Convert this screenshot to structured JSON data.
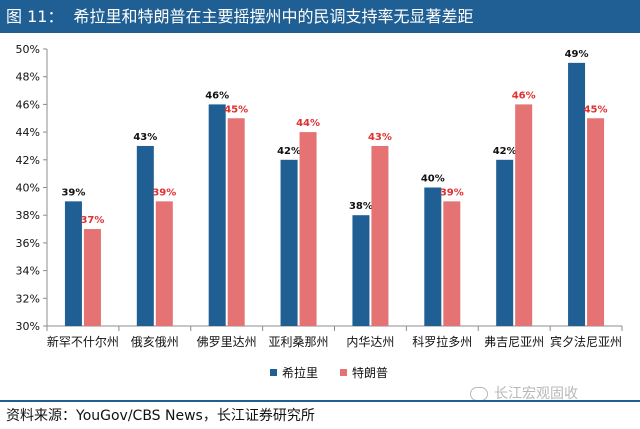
{
  "header": {
    "figure_no": "图 11：",
    "title": "希拉里和特朗普在主要摇摆州中的民调支持率无显著差距"
  },
  "source": "资料来源：YouGov/CBS News，长江证券研究所",
  "watermark": "长江宏观固收",
  "chart_data": {
    "type": "bar",
    "categories": [
      "新罕不什尔州",
      "俄亥俄州",
      "佛罗里达州",
      "亚利桑那州",
      "内华达州",
      "科罗拉多州",
      "弗吉尼亚州",
      "宾夕法尼亚州"
    ],
    "series": [
      {
        "name": "希拉里",
        "color": "#1f5f93",
        "label_color": "#111111",
        "values": [
          39,
          43,
          46,
          42,
          38,
          40,
          42,
          49
        ]
      },
      {
        "name": "特朗普",
        "color": "#e57373",
        "label_color": "#e03030",
        "values": [
          37,
          39,
          45,
          44,
          43,
          39,
          46,
          45
        ]
      }
    ],
    "ylim": [
      30,
      50
    ],
    "ytick_step": 2,
    "ytick_format": "percent",
    "legend_position": "bottom-center",
    "grid": false
  }
}
